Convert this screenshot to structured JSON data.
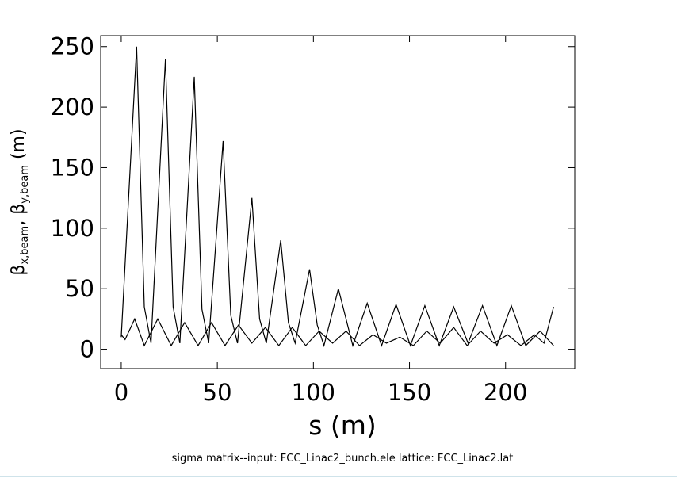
{
  "chart_data": {
    "type": "line",
    "xlabel": "s  (m)",
    "ylabel": [
      "β",
      "x,beam",
      ", ",
      "β",
      "y,beam",
      "  (m)"
    ],
    "footer": "sigma matrix--input: FCC_Linac2_bunch.ele   lattice: FCC_Linac2.lat",
    "xlim": [
      -10.7,
      236
    ],
    "ylim": [
      -16,
      259
    ],
    "xticks": [
      0,
      50,
      100,
      150,
      200
    ],
    "yticks": [
      0,
      50,
      100,
      150,
      200,
      250
    ],
    "series": [
      {
        "color": "#000000",
        "x": [
          0,
          8,
          12,
          15.5,
          23,
          27,
          30.5,
          38,
          42,
          45.5,
          53,
          57,
          60.5,
          68,
          72,
          75.5,
          83,
          87,
          90.5,
          98,
          102,
          105.5,
          113,
          120.5,
          128,
          135.5,
          143,
          150.5,
          158,
          165.5,
          173,
          180.5,
          188,
          195.5,
          203,
          210.5,
          218,
          225
        ],
        "values": [
          10,
          250,
          35,
          5,
          240,
          35,
          5,
          225,
          33,
          5,
          172,
          28,
          5,
          125,
          25,
          5,
          90,
          22,
          5,
          66,
          20,
          3,
          50,
          3,
          38,
          3,
          37,
          3,
          36,
          3,
          35,
          5,
          36,
          3,
          36,
          3,
          15,
          3
        ]
      },
      {
        "color": "#000000",
        "x": [
          0,
          2,
          7,
          12,
          19,
          26,
          33,
          40,
          47,
          54,
          61,
          68,
          75,
          82,
          89,
          96,
          103,
          110,
          117,
          124,
          131,
          138,
          145,
          152,
          159,
          166,
          173,
          180,
          187,
          194,
          201,
          208,
          215,
          220,
          225
        ],
        "values": [
          12,
          8,
          25,
          3,
          25,
          3,
          22,
          3,
          22,
          3,
          20,
          5,
          18,
          3,
          18,
          3,
          15,
          5,
          15,
          3,
          12,
          5,
          10,
          3,
          15,
          5,
          18,
          3,
          15,
          5,
          12,
          3,
          12,
          5,
          35
        ]
      }
    ]
  }
}
